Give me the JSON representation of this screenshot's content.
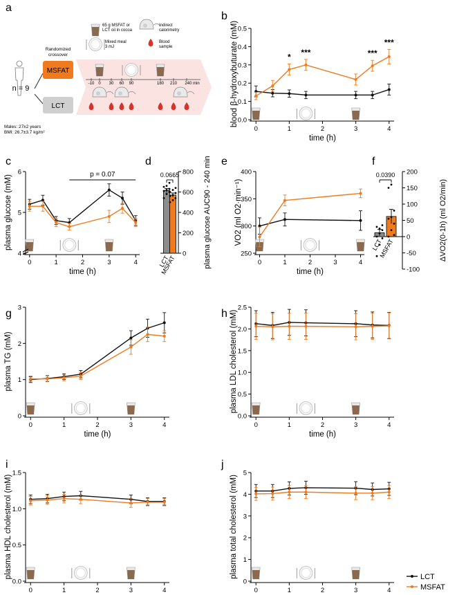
{
  "colors": {
    "lct": "#111111",
    "msfat": "#f07a1e",
    "bar_lct": "#8c8c8c",
    "bar_msfat": "#f07a1e",
    "blood": "#d6342b",
    "shake": "#8a6a4e",
    "band": "#fbe3e2"
  },
  "legend": {
    "lct": "LCT",
    "msfat": "MSFAT"
  },
  "panel_a": {
    "letter": "a",
    "n_label": "n = 9",
    "subject_info": [
      "Males: 27±2 years",
      "BMI: 26.7±3.7 kg/m²"
    ],
    "design_label": [
      "Randomized",
      "crossover"
    ],
    "arm1": "MSFAT",
    "arm2": "LCT",
    "legend_shake": [
      "65 g MSFAT or",
      "LCT oil in cocoa"
    ],
    "legend_meal": [
      "Mixed meal",
      "3 mJ"
    ],
    "legend_calorimetry": [
      "Indirect",
      "calorimetry"
    ],
    "legend_blood": [
      "Blood",
      "sample"
    ],
    "timeline": [
      "-10",
      "0",
      "30",
      "60",
      "90",
      "180",
      "210",
      "240 min"
    ]
  },
  "chart_data": [
    {
      "id": "b",
      "type": "line",
      "letter": "b",
      "xlabel": "time (h)",
      "ylabel": "blood β-hydroxybuturate (mM)",
      "x": [
        0,
        0.5,
        1,
        1.5,
        3,
        3.5,
        4
      ],
      "xlim": [
        -0.15,
        4.15
      ],
      "ylim": [
        0,
        0.5
      ],
      "yticks": [
        0.0,
        0.1,
        0.2,
        0.3,
        0.4,
        0.5
      ],
      "ytick_labels": [
        "0.0",
        "0.1",
        "0.2",
        "0.3",
        "0.4",
        "0.5"
      ],
      "xticks": [
        0,
        1,
        2,
        3,
        4
      ],
      "series": [
        {
          "name": "LCT",
          "values": [
            0.155,
            0.145,
            0.143,
            0.135,
            0.135,
            0.135,
            0.165
          ],
          "err": [
            0.03,
            0.02,
            0.02,
            0.02,
            0.02,
            0.02,
            0.03
          ]
        },
        {
          "name": "MSFAT",
          "values": [
            0.13,
            0.185,
            0.275,
            0.3,
            0.22,
            0.295,
            0.345
          ],
          "err": [
            0.02,
            0.03,
            0.03,
            0.03,
            0.03,
            0.03,
            0.04
          ]
        }
      ],
      "annotations": [
        {
          "x": 1,
          "text": "*"
        },
        {
          "x": 1.5,
          "text": "***"
        },
        {
          "x": 3.5,
          "text": "***"
        },
        {
          "x": 4,
          "text": "***"
        }
      ]
    },
    {
      "id": "c",
      "type": "line",
      "letter": "c",
      "xlabel": "time (h)",
      "ylabel": "plasma glucose (mM)",
      "x": [
        0,
        0.5,
        1,
        1.5,
        3,
        3.5,
        4
      ],
      "xlim": [
        -0.15,
        4.15
      ],
      "ylim": [
        4,
        6
      ],
      "yticks": [
        4,
        5,
        6
      ],
      "ytick_labels": [
        "4",
        "5",
        "6"
      ],
      "xticks": [
        0,
        1,
        2,
        3,
        4
      ],
      "series": [
        {
          "name": "LCT",
          "values": [
            5.2,
            5.3,
            4.8,
            4.75,
            5.55,
            5.35,
            4.8
          ],
          "err": [
            0.12,
            0.12,
            0.1,
            0.1,
            0.15,
            0.15,
            0.12
          ]
        },
        {
          "name": "MSFAT",
          "values": [
            5.15,
            5.15,
            4.75,
            4.65,
            4.9,
            5.1,
            4.75
          ],
          "err": [
            0.12,
            0.12,
            0.1,
            0.08,
            0.15,
            0.12,
            0.1
          ]
        }
      ],
      "bracket": {
        "x1": 1.5,
        "x2": 4,
        "text": "p = 0.07"
      }
    },
    {
      "id": "d",
      "type": "bar",
      "letter": "d",
      "ylabel": "plasma glucose AUC90 - 240 min",
      "categories": [
        "LCT",
        "MSFAT"
      ],
      "values": [
        615,
        570
      ],
      "err": [
        20,
        20
      ],
      "ylim": [
        0,
        800
      ],
      "yticks": [
        0,
        200,
        400,
        600,
        800
      ],
      "ytick_labels": [
        "0",
        "200",
        "400",
        "600",
        "800"
      ],
      "points": [
        [
          540,
          580,
          600,
          610,
          620,
          630,
          650,
          660,
          690
        ],
        [
          500,
          520,
          540,
          560,
          570,
          590,
          600,
          620,
          640
        ]
      ],
      "pvalue": "0.0665"
    },
    {
      "id": "e",
      "type": "line",
      "letter": "e",
      "xlabel": "time (h)",
      "ylabel": "VO2 (ml O2·min⁻¹)",
      "x": [
        0,
        1,
        4
      ],
      "xlim": [
        -0.15,
        4.15
      ],
      "ylim": [
        250,
        400
      ],
      "yticks": [
        250,
        300,
        350,
        400
      ],
      "ytick_labels": [
        "250",
        "300",
        "350",
        "400"
      ],
      "xticks": [
        0,
        1,
        2,
        3,
        4
      ],
      "series": [
        {
          "name": "LCT",
          "values": [
            300,
            312,
            310
          ],
          "err": [
            15,
            12,
            18
          ]
        },
        {
          "name": "MSFAT",
          "values": [
            280,
            347,
            360
          ],
          "err": [
            18,
            10,
            8
          ]
        }
      ]
    },
    {
      "id": "f",
      "type": "bar",
      "letter": "f",
      "ylabel": "ΔVO2(0-1h) (ml O2/min)",
      "categories": [
        "LCT",
        "MSFAT"
      ],
      "values": [
        12,
        62
      ],
      "err": [
        10,
        22
      ],
      "ylim": [
        -100,
        200
      ],
      "yticks": [
        -100,
        -50,
        0,
        50,
        100,
        150,
        200
      ],
      "ytick_labels": [
        "-100",
        "-50",
        "0",
        "50",
        "100",
        "150",
        "200"
      ],
      "points": [
        [
          -60,
          -25,
          -5,
          0,
          10,
          20,
          30,
          25,
          35
        ],
        [
          0,
          20,
          40,
          55,
          60,
          80,
          150,
          160,
          5
        ]
      ],
      "pvalue": "0.0390"
    },
    {
      "id": "g",
      "type": "line",
      "letter": "g",
      "xlabel": "time (h)",
      "ylabel": "plasma TG (mM)",
      "x": [
        0,
        0.5,
        1,
        1.5,
        3,
        3.5,
        4
      ],
      "xlim": [
        -0.15,
        4.15
      ],
      "ylim": [
        0,
        3
      ],
      "yticks": [
        0,
        1,
        2,
        3
      ],
      "ytick_labels": [
        "0",
        "1",
        "2",
        "3"
      ],
      "xticks": [
        0,
        1,
        2,
        3,
        4
      ],
      "series": [
        {
          "name": "LCT",
          "values": [
            1.0,
            1.03,
            1.08,
            1.15,
            2.15,
            2.42,
            2.57
          ],
          "err": [
            0.08,
            0.08,
            0.08,
            0.1,
            0.2,
            0.25,
            0.28
          ]
        },
        {
          "name": "MSFAT",
          "values": [
            1.02,
            1.02,
            1.05,
            1.1,
            1.9,
            2.25,
            2.2
          ],
          "err": [
            0.08,
            0.08,
            0.08,
            0.1,
            0.2,
            0.2,
            0.15
          ]
        }
      ]
    },
    {
      "id": "h",
      "type": "line",
      "letter": "h",
      "xlabel": "time (h)",
      "ylabel": "plasma LDL cholesterol (mM)",
      "x": [
        0,
        0.5,
        1,
        1.5,
        3,
        3.5,
        4
      ],
      "xlim": [
        -0.15,
        4.15
      ],
      "ylim": [
        0,
        2.5
      ],
      "yticks": [
        0.0,
        0.5,
        1.0,
        1.5,
        2.0,
        2.5
      ],
      "ytick_labels": [
        "0.0",
        "0.5",
        "1.0",
        "1.5",
        "2.0",
        "2.5"
      ],
      "xticks": [
        0,
        1,
        2,
        3,
        4
      ],
      "series": [
        {
          "name": "LCT",
          "values": [
            2.12,
            2.08,
            2.15,
            2.14,
            2.12,
            2.09,
            2.08
          ],
          "err": [
            0.3,
            0.3,
            0.3,
            0.3,
            0.3,
            0.3,
            0.3
          ]
        },
        {
          "name": "MSFAT",
          "values": [
            2.06,
            2.05,
            2.06,
            2.06,
            2.05,
            2.06,
            2.07
          ],
          "err": [
            0.3,
            0.3,
            0.3,
            0.3,
            0.3,
            0.3,
            0.3
          ]
        }
      ]
    },
    {
      "id": "i",
      "type": "line",
      "letter": "i",
      "xlabel": "time (h)",
      "ylabel": "plasma HDL cholesterol (mM)",
      "x": [
        0,
        0.5,
        1,
        1.5,
        3,
        3.5,
        4
      ],
      "xlim": [
        -0.15,
        4.15
      ],
      "ylim": [
        0,
        1.5
      ],
      "yticks": [
        0.0,
        0.5,
        1.0,
        1.5
      ],
      "ytick_labels": [
        "0.0",
        "0.5",
        "1.0",
        "1.5"
      ],
      "xticks": [
        0,
        1,
        2,
        3,
        4
      ],
      "series": [
        {
          "name": "LCT",
          "values": [
            1.13,
            1.14,
            1.17,
            1.18,
            1.13,
            1.1,
            1.1
          ],
          "err": [
            0.06,
            0.06,
            0.06,
            0.06,
            0.06,
            0.05,
            0.05
          ]
        },
        {
          "name": "MSFAT",
          "values": [
            1.11,
            1.12,
            1.14,
            1.13,
            1.08,
            1.09,
            1.09
          ],
          "err": [
            0.06,
            0.06,
            0.06,
            0.06,
            0.06,
            0.05,
            0.05
          ]
        }
      ]
    },
    {
      "id": "j",
      "type": "line",
      "letter": "j",
      "xlabel": "time (h)",
      "ylabel": "plasma total cholesterol (mM)",
      "x": [
        0,
        0.5,
        1,
        1.5,
        3,
        3.5,
        4
      ],
      "xlim": [
        -0.15,
        4.15
      ],
      "ylim": [
        0,
        5
      ],
      "yticks": [
        0,
        1,
        2,
        3,
        4,
        5
      ],
      "ytick_labels": [
        "0",
        "1",
        "2",
        "3",
        "4",
        "5"
      ],
      "xticks": [
        0,
        1,
        2,
        3,
        4
      ],
      "series": [
        {
          "name": "LCT",
          "values": [
            4.15,
            4.15,
            4.27,
            4.3,
            4.28,
            4.22,
            4.25
          ],
          "err": [
            0.3,
            0.3,
            0.3,
            0.3,
            0.3,
            0.3,
            0.3
          ]
        },
        {
          "name": "MSFAT",
          "values": [
            4.02,
            4.03,
            4.1,
            4.1,
            4.05,
            4.05,
            4.1
          ],
          "err": [
            0.3,
            0.3,
            0.3,
            0.3,
            0.3,
            0.3,
            0.3
          ]
        }
      ]
    }
  ]
}
